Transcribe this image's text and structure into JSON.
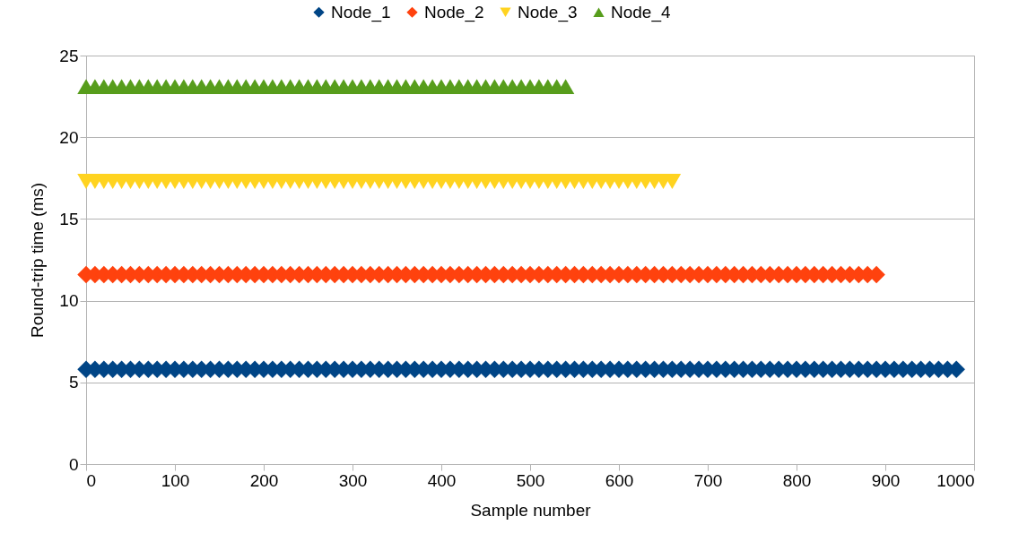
{
  "chart_data": {
    "type": "scatter",
    "xlabel": "Sample number",
    "ylabel": "Round-trip time (ms)",
    "xlim": [
      0,
      1000
    ],
    "xticks": [
      0,
      100,
      200,
      300,
      400,
      500,
      600,
      700,
      800,
      900,
      1000
    ],
    "ylim": [
      0,
      25
    ],
    "yticks": [
      0,
      5,
      10,
      15,
      20,
      25
    ],
    "grid": "y",
    "legend": "top",
    "x": [
      0,
      10,
      20,
      30,
      40,
      50,
      60,
      70,
      80,
      90,
      100,
      110,
      120,
      130,
      140,
      150,
      160,
      170,
      180,
      190,
      200,
      210,
      220,
      230,
      240,
      250,
      260,
      270,
      280,
      290,
      300,
      310,
      320,
      330,
      340,
      350,
      360,
      370,
      380,
      390,
      400,
      410,
      420,
      430,
      440,
      450,
      460,
      470,
      480,
      490,
      500,
      510,
      520,
      530,
      540,
      550,
      560,
      570,
      580,
      590,
      600,
      610,
      620,
      630,
      640,
      650,
      660,
      670,
      680,
      690,
      700,
      710,
      720,
      730,
      740,
      750,
      760,
      770,
      780,
      790,
      800,
      810,
      820,
      830,
      840,
      850,
      860,
      870,
      880,
      890,
      900,
      910,
      920,
      930,
      940,
      950,
      960,
      970,
      980
    ],
    "series": [
      {
        "name": "Node_1",
        "color": "#004586",
        "marker": "diamond",
        "values": [
          5.8,
          5.8,
          5.8,
          5.8,
          5.8,
          5.8,
          5.8,
          5.8,
          5.8,
          5.8,
          5.8,
          5.8,
          5.8,
          5.8,
          5.8,
          5.8,
          5.8,
          5.8,
          5.8,
          5.8,
          5.8,
          5.8,
          5.8,
          5.8,
          5.8,
          5.8,
          5.8,
          5.8,
          5.8,
          5.8,
          5.8,
          5.8,
          5.8,
          5.8,
          5.8,
          5.8,
          5.8,
          5.8,
          5.8,
          5.8,
          5.8,
          5.8,
          5.8,
          5.8,
          5.8,
          5.8,
          5.8,
          5.8,
          5.8,
          5.8,
          5.8,
          5.8,
          5.8,
          5.8,
          5.8,
          5.8,
          5.8,
          5.8,
          5.8,
          5.8,
          5.8,
          5.8,
          5.8,
          5.8,
          5.8,
          5.8,
          5.8,
          5.8,
          5.8,
          5.8,
          5.8,
          5.8,
          5.8,
          5.8,
          5.8,
          5.8,
          5.8,
          5.8,
          5.8,
          5.8,
          5.8,
          5.8,
          5.8,
          5.8,
          5.8,
          5.8,
          5.8,
          5.8,
          5.8,
          5.8,
          5.8,
          5.8,
          5.8,
          5.8,
          5.8,
          5.8,
          5.8,
          5.8,
          5.8
        ]
      },
      {
        "name": "Node_2",
        "color": "#ff420e",
        "marker": "diamond",
        "values": [
          11.6,
          11.6,
          11.6,
          11.6,
          11.6,
          11.6,
          11.6,
          11.6,
          11.6,
          11.6,
          11.6,
          11.6,
          11.6,
          11.6,
          11.6,
          11.6,
          11.6,
          11.6,
          11.6,
          11.6,
          11.6,
          11.6,
          11.6,
          11.6,
          11.6,
          11.6,
          11.6,
          11.6,
          11.6,
          11.6,
          11.6,
          11.6,
          11.6,
          11.6,
          11.6,
          11.6,
          11.6,
          11.6,
          11.6,
          11.6,
          11.6,
          11.6,
          11.6,
          11.6,
          11.6,
          11.6,
          11.6,
          11.6,
          11.6,
          11.6,
          11.6,
          11.6,
          11.6,
          11.6,
          11.6,
          11.6,
          11.6,
          11.6,
          11.6,
          11.6,
          11.6,
          11.6,
          11.6,
          11.6,
          11.6,
          11.6,
          11.6,
          11.6,
          11.6,
          11.6,
          11.6,
          11.6,
          11.6,
          11.6,
          11.6,
          11.6,
          11.6,
          11.6,
          11.6,
          11.6,
          11.6,
          11.6,
          11.6,
          11.6,
          11.6,
          11.6,
          11.6,
          11.6,
          11.6,
          11.6,
          null,
          null,
          null,
          null,
          null,
          null,
          null,
          null,
          null
        ]
      },
      {
        "name": "Node_3",
        "color": "#ffd320",
        "marker": "triangle-down",
        "values": [
          17.3,
          17.3,
          17.3,
          17.3,
          17.3,
          17.3,
          17.3,
          17.3,
          17.3,
          17.3,
          17.3,
          17.3,
          17.3,
          17.3,
          17.3,
          17.3,
          17.3,
          17.3,
          17.3,
          17.3,
          17.3,
          17.3,
          17.3,
          17.3,
          17.3,
          17.3,
          17.3,
          17.3,
          17.3,
          17.3,
          17.3,
          17.3,
          17.3,
          17.3,
          17.3,
          17.3,
          17.3,
          17.3,
          17.3,
          17.3,
          17.3,
          17.3,
          17.3,
          17.3,
          17.3,
          17.3,
          17.3,
          17.3,
          17.3,
          17.3,
          17.3,
          17.3,
          17.3,
          17.3,
          17.3,
          17.3,
          17.3,
          17.3,
          17.3,
          17.3,
          17.3,
          17.3,
          17.3,
          17.3,
          17.3,
          17.3,
          17.3,
          null,
          null,
          null,
          null,
          null,
          null,
          null,
          null,
          null,
          null,
          null,
          null,
          null,
          null,
          null,
          null,
          null,
          null,
          null,
          null,
          null,
          null,
          null,
          null,
          null,
          null,
          null,
          null,
          null,
          null,
          null,
          null
        ]
      },
      {
        "name": "Node_4",
        "color": "#579d1c",
        "marker": "triangle-up",
        "values": [
          23.1,
          23.1,
          23.1,
          23.1,
          23.1,
          23.1,
          23.1,
          23.1,
          23.1,
          23.1,
          23.1,
          23.1,
          23.1,
          23.1,
          23.1,
          23.1,
          23.1,
          23.1,
          23.1,
          23.1,
          23.1,
          23.1,
          23.1,
          23.1,
          23.1,
          23.1,
          23.1,
          23.1,
          23.1,
          23.1,
          23.1,
          23.1,
          23.1,
          23.1,
          23.1,
          23.1,
          23.1,
          23.1,
          23.1,
          23.1,
          23.1,
          23.1,
          23.1,
          23.1,
          23.1,
          23.1,
          23.1,
          23.1,
          23.1,
          23.1,
          23.1,
          23.1,
          23.1,
          23.1,
          23.1,
          null,
          null,
          null,
          null,
          null,
          null,
          null,
          null,
          null,
          null,
          null,
          null,
          null,
          null,
          null,
          null,
          null,
          null,
          null,
          null,
          null,
          null,
          null,
          null,
          null,
          null,
          null,
          null,
          null,
          null,
          null,
          null,
          null,
          null,
          null,
          null,
          null,
          null,
          null,
          null,
          null,
          null,
          null,
          null
        ]
      }
    ]
  }
}
